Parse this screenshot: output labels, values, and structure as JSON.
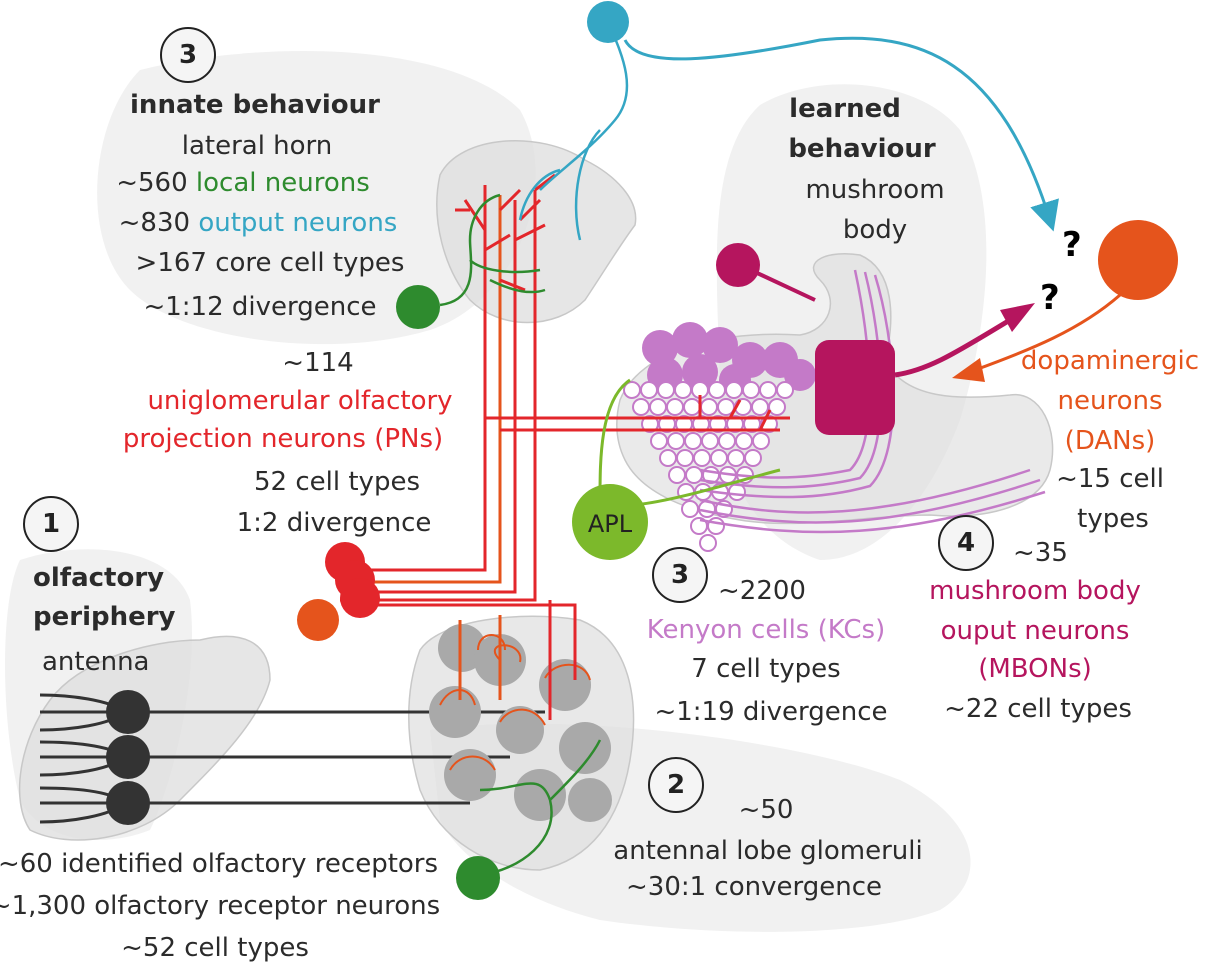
{
  "colors": {
    "ln": "#2e8b2e",
    "on": "#35a6c4",
    "pn": "#e3262b",
    "pn_alt": "#e5541c",
    "kc": "#c47ac8",
    "mbon": "#b5155e",
    "dan": "#e5541c",
    "apl": "#7cb92b",
    "orn": "#333333",
    "glom": "#a9a9a9",
    "region": "#f1f1f1"
  },
  "icons": [
    "help-question-icon"
  ],
  "sections": {
    "periphery": {
      "badge": "1",
      "title_line1": "olfactory",
      "title_line2": "periphery",
      "subtitle": "antenna",
      "stat1": "~60 identified olfactory receptors",
      "stat2": "~1,300 olfactory receptor neurons",
      "stat3": "~52 cell types"
    },
    "antennal_lobe": {
      "badge": "2",
      "stat1": "~50",
      "stat2": "antennal lobe glomeruli",
      "stat3": "~30:1 convergence"
    },
    "innate": {
      "badge": "3",
      "title": "innate behaviour",
      "subtitle": "lateral horn",
      "ln_count": "~560",
      "ln_label": "local neurons",
      "on_count": "~830",
      "on_label": "output neurons",
      "core": ">167 core cell types",
      "divergence": "~1:12 divergence"
    },
    "projection": {
      "count": "~114",
      "label_line1": "uniglomerular olfactory",
      "label_line2": "projection neurons (PNs)",
      "types": "52 cell types",
      "divergence": "1:2 divergence"
    },
    "learned": {
      "title_line1": "learned",
      "title_line2": "behaviour",
      "sub_line1": "mushroom",
      "sub_line2": "body"
    },
    "kenyon": {
      "badge": "3",
      "count": "~2200",
      "label": "Kenyon cells (KCs)",
      "types": "7 cell types",
      "divergence": "~1:19 divergence"
    },
    "apl": {
      "label": "APL"
    },
    "dan": {
      "label_line1": "dopaminergic",
      "label_line2": "neurons",
      "label_line3": "(DANs)",
      "types_line1": "~15 cell",
      "types_line2": "types",
      "question": "?"
    },
    "mbon": {
      "badge": "4",
      "count": "~35",
      "label_line1": "mushroom body",
      "label_line2": "ouput neurons",
      "label_line3": "(MBONs)",
      "types": "~22 cell types",
      "question": "?"
    }
  }
}
